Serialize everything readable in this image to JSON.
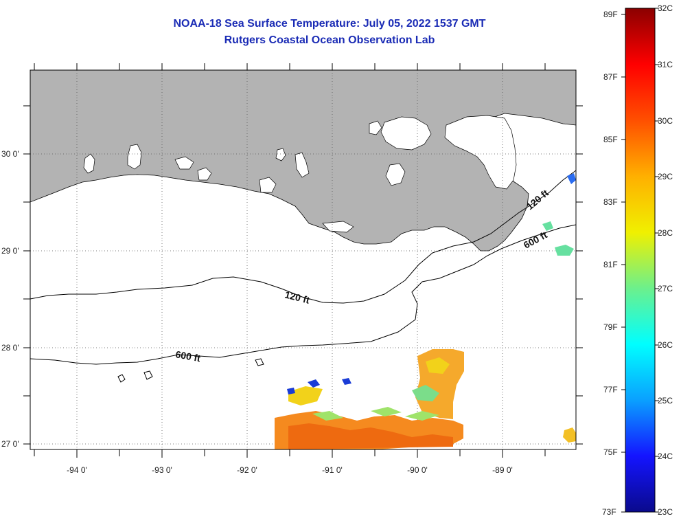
{
  "title": {
    "line1": "NOAA-18 Sea Surface Temperature:  July 05, 2022 1537 GMT",
    "line2": "Rutgers Coastal Ocean Observation Lab"
  },
  "map": {
    "lon_labels": [
      "-94 0'",
      "-93 0'",
      "-92 0'",
      "-91 0'",
      "-90 0'",
      "-89 0'"
    ],
    "lat_labels": [
      "30 0'",
      "29 0'",
      "28 0'",
      "27 0'"
    ],
    "contour_labels": {
      "shelf_west_120": "120 ft",
      "shelf_west_600": "600 ft",
      "shelf_east_120": "120 ft",
      "shelf_east_600": "600 ft"
    },
    "colors": {
      "land": "#b3b3b3",
      "ocean": "#ffffff",
      "contour": "#000000",
      "grid": "#555555"
    }
  },
  "colorbar": {
    "fahrenheit_labels": [
      "89F",
      "87F",
      "85F",
      "83F",
      "81F",
      "79F",
      "77F",
      "75F",
      "73F"
    ],
    "celsius_labels": [
      "32C",
      "31C",
      "30C",
      "29C",
      "28C",
      "27C",
      "26C",
      "25C",
      "24C",
      "23C"
    ],
    "range_c": [
      23,
      32
    ],
    "range_f": [
      73,
      89
    ],
    "gradient_stops": [
      "#0a0a8c",
      "#1414ff",
      "#0aa0ff",
      "#00ffff",
      "#6cf08c",
      "#f0f000",
      "#ffb000",
      "#ff5000",
      "#ff0000",
      "#8b0000"
    ]
  }
}
